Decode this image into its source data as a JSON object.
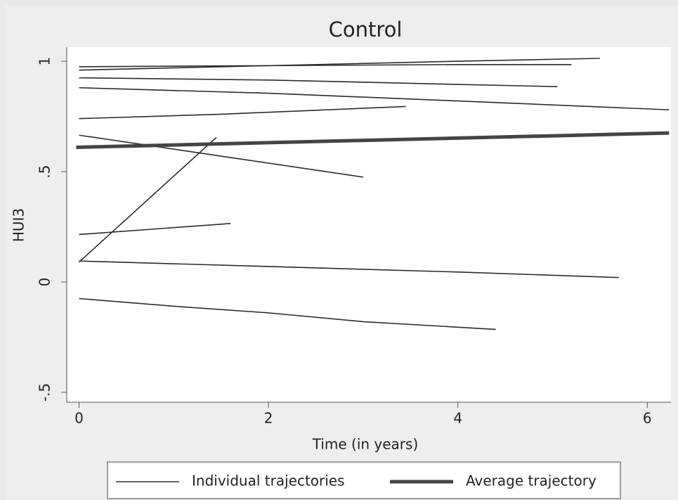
{
  "chart_data": {
    "type": "line",
    "title": "Control",
    "x_label": "Time (in years)",
    "y_label": "HUI3",
    "xlim": [
      -0.13,
      6.25
    ],
    "xticks": [
      0,
      2,
      4,
      6
    ],
    "ylim": [
      -0.545,
      1.064
    ],
    "yticks": [
      1,
      {
        "value": 0.5,
        "label": ".5"
      },
      0,
      {
        "value": -0.5,
        "label": "-.5"
      }
    ],
    "grid": false,
    "series": [
      {
        "name": "Individual trajectories",
        "color": "#2b2b2b",
        "lines": [
          {
            "x": [
              0,
              2,
              4,
              5.5
            ],
            "values": [
              0.96,
              0.98,
              1.0,
              1.013
            ]
          },
          {
            "x": [
              0,
              2,
              4,
              5.2
            ],
            "values": [
              0.975,
              0.98,
              0.985,
              0.985
            ]
          },
          {
            "x": [
              0,
              2,
              4,
              5.05
            ],
            "values": [
              0.925,
              0.915,
              0.895,
              0.885
            ]
          },
          {
            "x": [
              0,
              2,
              4,
              6.23
            ],
            "values": [
              0.88,
              0.855,
              0.82,
              0.78
            ]
          },
          {
            "x": [
              0,
              1.5,
              3.45
            ],
            "values": [
              0.74,
              0.76,
              0.795
            ]
          },
          {
            "x": [
              0,
              1.5,
              3.0
            ],
            "values": [
              0.665,
              0.57,
              0.475
            ]
          },
          {
            "x": [
              0,
              1.45
            ],
            "values": [
              0.09,
              0.655
            ]
          },
          {
            "x": [
              0,
              0.8,
              1.6
            ],
            "values": [
              0.215,
              0.24,
              0.265
            ]
          },
          {
            "x": [
              0,
              2,
              4,
              5.7
            ],
            "values": [
              0.095,
              0.07,
              0.045,
              0.02
            ]
          },
          {
            "x": [
              0,
              1,
              2,
              3,
              4.4
            ],
            "values": [
              -0.075,
              -0.11,
              -0.14,
              -0.18,
              -0.215
            ]
          }
        ]
      },
      {
        "name": "Average trajectory",
        "color": "#444444",
        "x": [
          -0.03,
          6.23
        ],
        "values": [
          0.61,
          0.675
        ]
      }
    ]
  }
}
